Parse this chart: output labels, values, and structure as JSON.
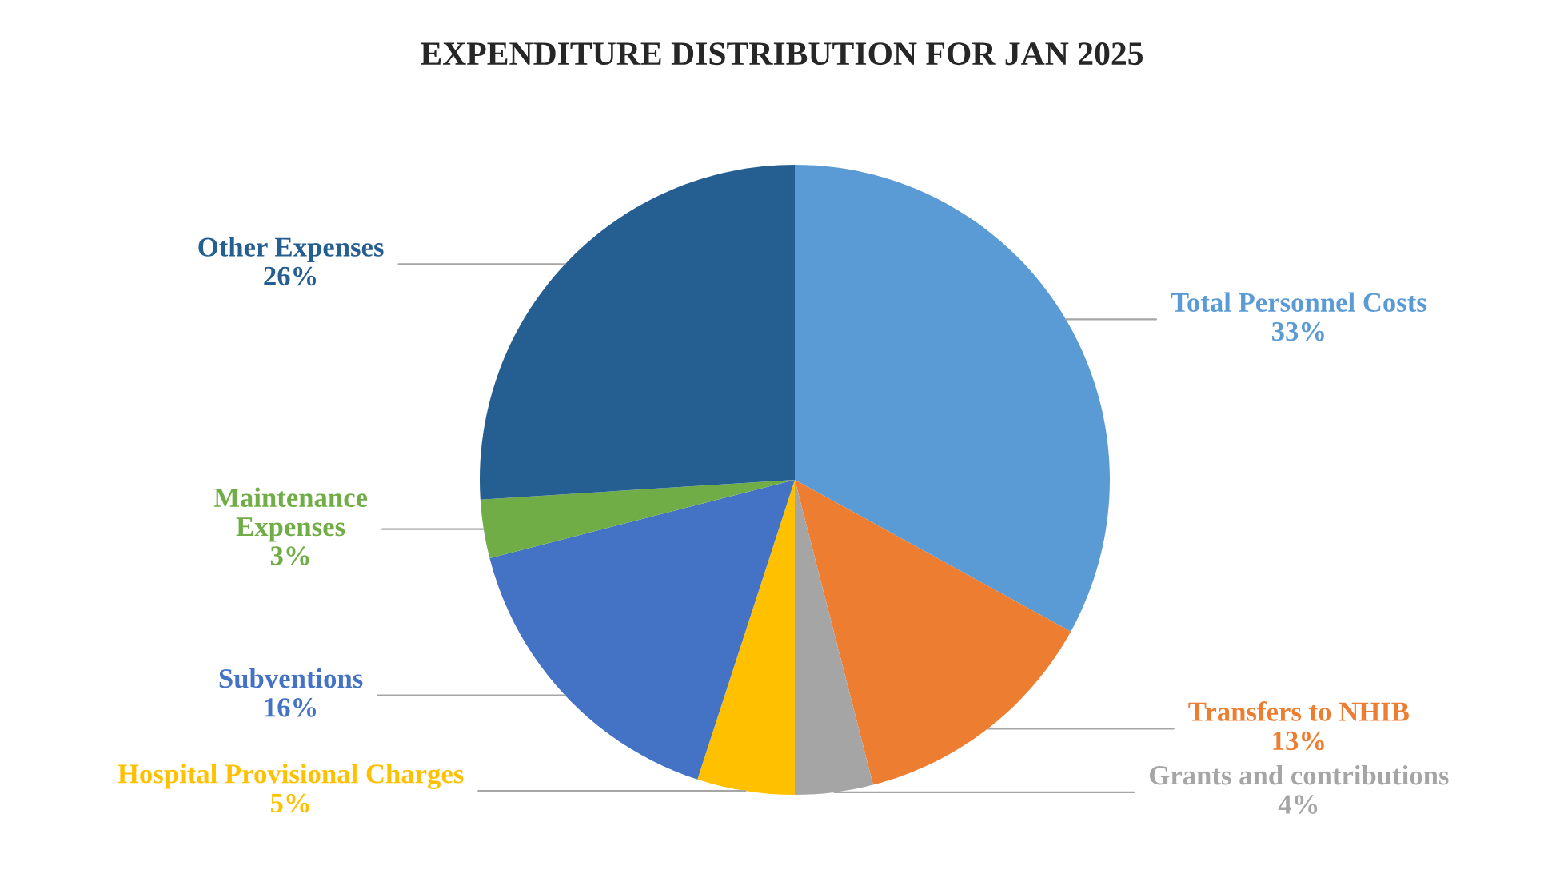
{
  "chart_data": {
    "type": "pie",
    "title": "EXPENDITURE DISTRIBUTION FOR JAN 2025",
    "categories": [
      "Total Personnel Costs",
      "Transfers to NHIB",
      "Grants and contributions",
      "Hospital Provisional Charges",
      "Subventions",
      "Maintenance\nExpenses",
      "Other Expenses"
    ],
    "values": [
      33,
      13,
      4,
      5,
      16,
      3,
      26
    ],
    "value_labels": [
      "33%",
      "13%",
      "4%",
      "5%",
      "16%",
      "3%",
      "26%"
    ],
    "colors": [
      "#5b9bd5",
      "#ed7d31",
      "#a5a5a5",
      "#ffc000",
      "#4472c4",
      "#70ad47",
      "#255e91"
    ]
  }
}
